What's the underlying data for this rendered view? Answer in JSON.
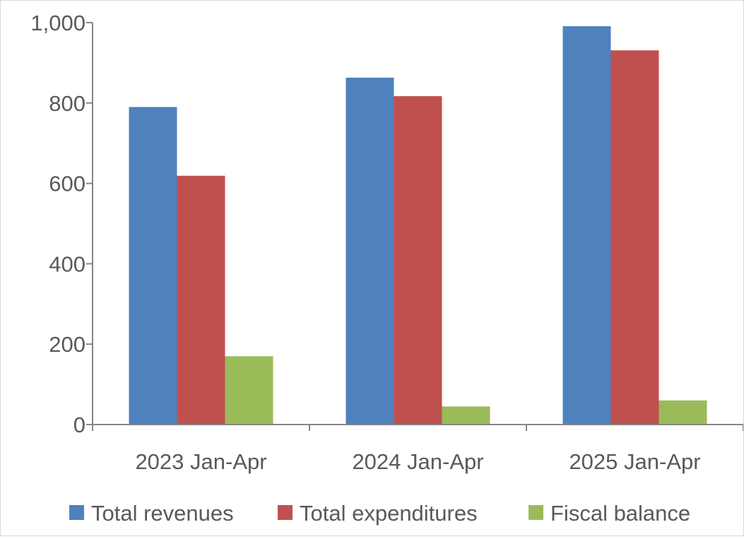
{
  "chart_data": {
    "type": "bar",
    "title": "",
    "xlabel": "",
    "ylabel": "",
    "categories": [
      "2023 Jan-Apr",
      "2024 Jan-Apr",
      "2025 Jan-Apr"
    ],
    "series": [
      {
        "name": "Total revenues",
        "color": "#4F81BD",
        "values": [
          790,
          863,
          991
        ]
      },
      {
        "name": "Total expenditures",
        "color": "#C0504D",
        "values": [
          619,
          817,
          931
        ]
      },
      {
        "name": "Fiscal balance",
        "color": "#9BBB59",
        "values": [
          170,
          45,
          60
        ]
      }
    ],
    "ylim": [
      0,
      1000
    ],
    "yticks": [
      0,
      200,
      400,
      600,
      800,
      1000
    ],
    "ytick_labels": [
      "0",
      "200",
      "400",
      "600",
      "800",
      "1,000"
    ],
    "grid": false,
    "legend_position": "bottom"
  }
}
